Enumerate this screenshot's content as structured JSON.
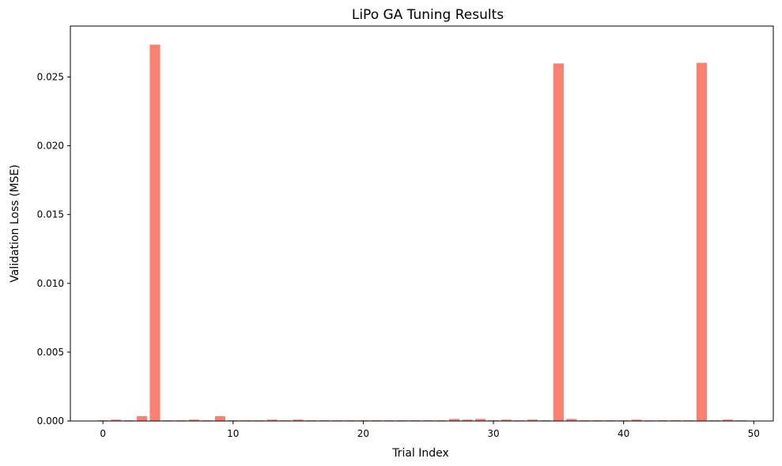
{
  "chart_data": {
    "type": "bar",
    "title": "LiPo GA Tuning Results",
    "xlabel": "Trial Index",
    "ylabel": "Validation Loss (MSE)",
    "bar_color": "#fa8072",
    "xlim": [
      -2.5,
      51.5
    ],
    "ylim": [
      0,
      0.0287
    ],
    "x_ticks": [
      0,
      10,
      20,
      30,
      40,
      50
    ],
    "y_ticks": [
      0.0,
      0.005,
      0.01,
      0.015,
      0.02,
      0.025
    ],
    "y_tick_labels": [
      "0.000",
      "0.005",
      "0.010",
      "0.015",
      "0.020",
      "0.025"
    ],
    "grid": false,
    "x": [
      0,
      1,
      2,
      3,
      4,
      5,
      6,
      7,
      8,
      9,
      10,
      11,
      12,
      13,
      14,
      15,
      16,
      17,
      18,
      19,
      20,
      21,
      22,
      23,
      24,
      25,
      26,
      27,
      28,
      29,
      30,
      31,
      32,
      33,
      34,
      35,
      36,
      37,
      38,
      39,
      40,
      41,
      42,
      43,
      44,
      45,
      46,
      47,
      48,
      49
    ],
    "values": [
      5e-05,
      0.0001,
      5e-05,
      0.00035,
      0.02735,
      5e-05,
      5e-05,
      0.0001,
      5e-05,
      0.00035,
      5e-05,
      5e-05,
      5e-05,
      0.0001,
      5e-05,
      0.0001,
      5e-05,
      5e-05,
      5e-05,
      5e-05,
      5e-05,
      5e-05,
      5e-05,
      5e-05,
      5e-05,
      5e-05,
      5e-05,
      0.00015,
      0.0001,
      0.00015,
      5e-05,
      0.0001,
      5e-05,
      0.0001,
      5e-05,
      0.02598,
      0.00015,
      5e-05,
      5e-05,
      5e-05,
      5e-05,
      0.0001,
      5e-05,
      5e-05,
      5e-05,
      5e-05,
      0.02603,
      5e-05,
      0.0001,
      5e-05
    ]
  }
}
